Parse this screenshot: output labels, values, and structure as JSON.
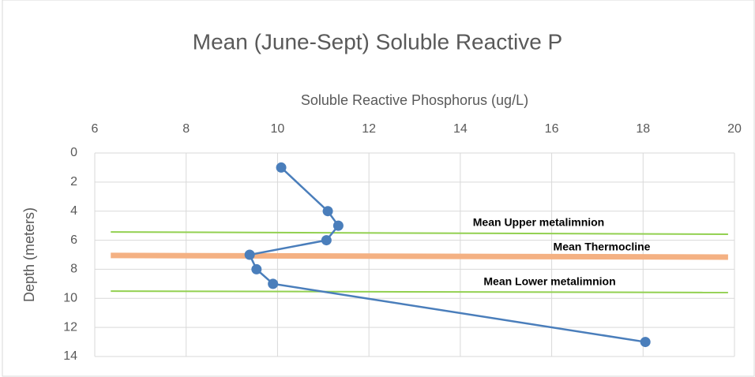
{
  "chart_data": {
    "type": "line",
    "title": "Mean (June-Sept) Soluble Reactive P",
    "x_label": "Soluble Reactive Phosphorus (ug/L)",
    "y_label": "Depth (meters)",
    "x_axis_position": "top",
    "y_inverted": true,
    "grid": true,
    "xlim": [
      6,
      20
    ],
    "xticks": [
      6,
      8,
      10,
      12,
      14,
      16,
      18,
      20
    ],
    "ylim": [
      0,
      14
    ],
    "yticks": [
      0,
      2,
      4,
      6,
      8,
      10,
      12,
      14
    ],
    "series": [
      {
        "color": "#4a7ebb",
        "markers": true,
        "width": 2.5,
        "x": [
          10.08,
          11.1,
          11.33,
          11.07,
          9.39,
          9.54,
          9.9,
          18.05
        ],
        "values": [
          1,
          4,
          5,
          6,
          7,
          8,
          9,
          13
        ]
      },
      {
        "color": "#92d050",
        "markers": false,
        "width": 2,
        "x": [
          6.35,
          19.86
        ],
        "values": [
          5.43,
          5.59
        ]
      },
      {
        "color": "#f4b183",
        "markers": false,
        "width": 7,
        "x": [
          6.35,
          19.86
        ],
        "values": [
          7.05,
          7.16
        ]
      },
      {
        "color": "#92d050",
        "markers": false,
        "width": 2,
        "x": [
          6.35,
          19.86
        ],
        "values": [
          9.5,
          9.6
        ]
      }
    ],
    "annotations": [
      "Mean Upper metalimnion",
      "Mean Thermocline",
      "Mean Lower metalimnion"
    ]
  }
}
